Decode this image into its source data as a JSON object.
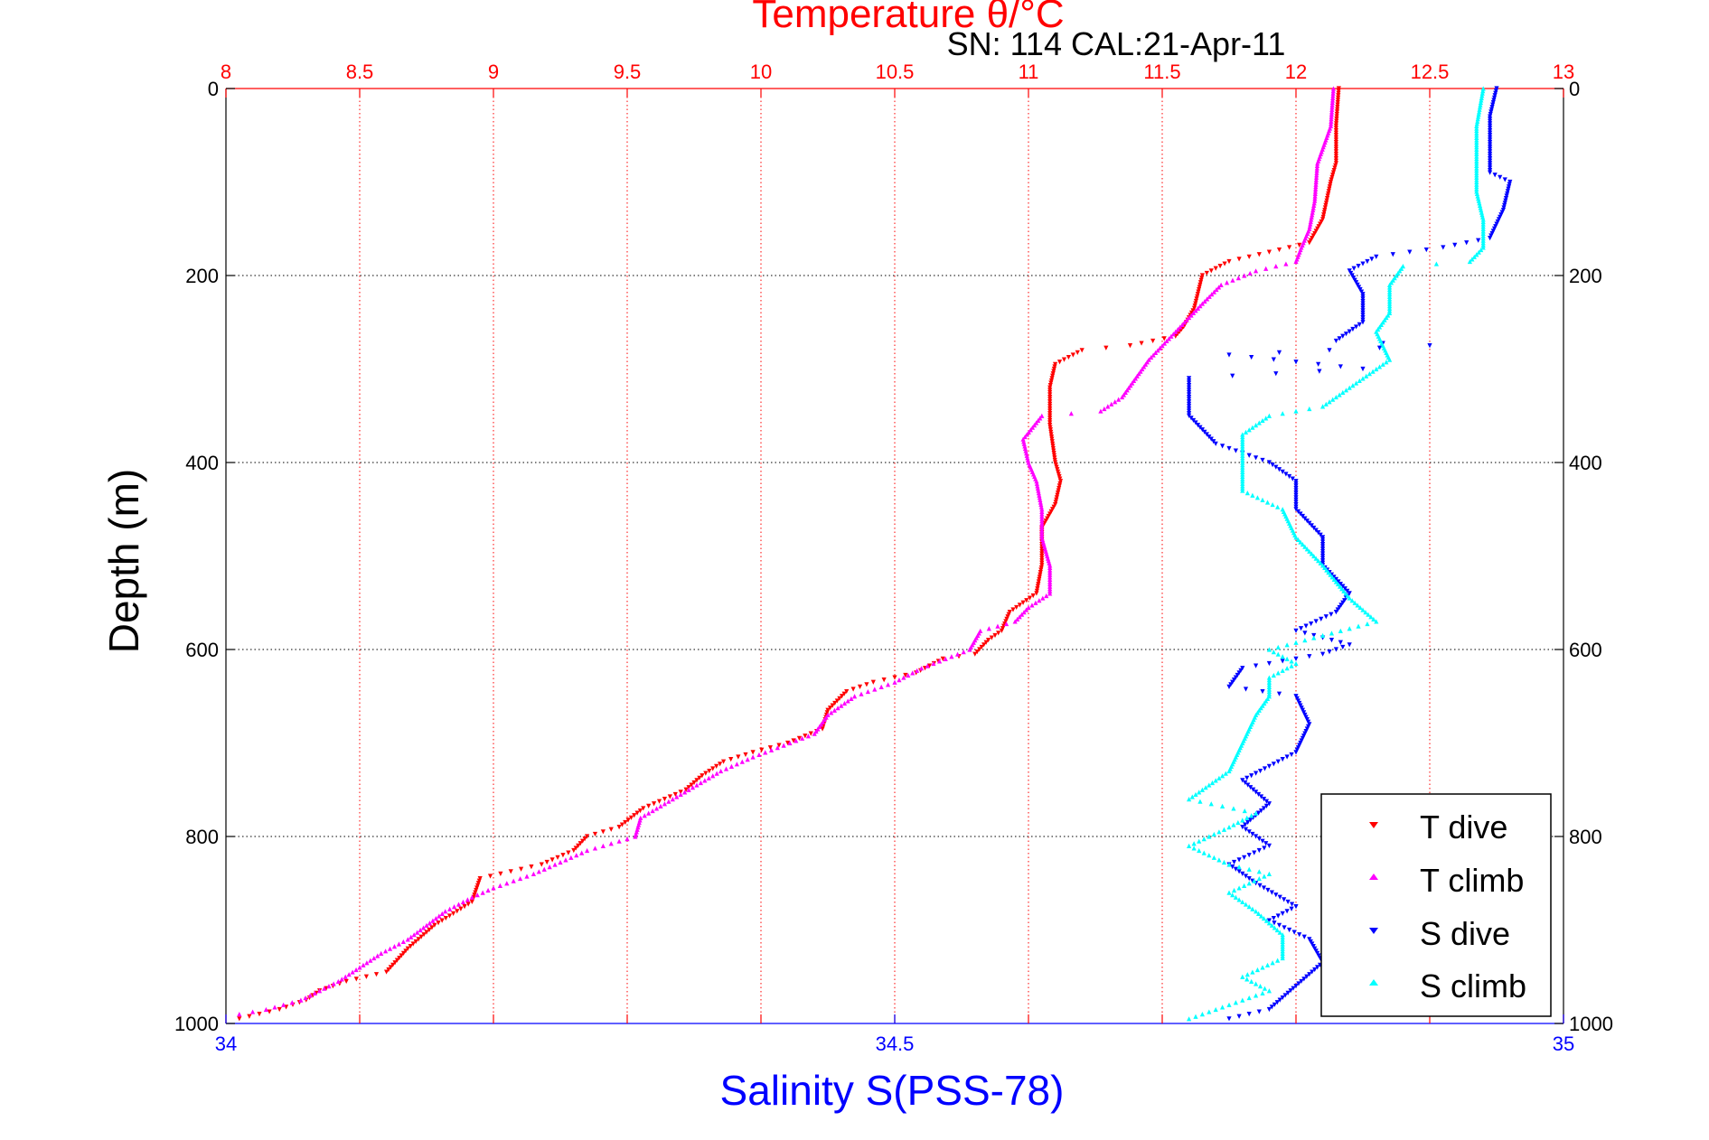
{
  "chart_data": {
    "type": "scatter",
    "title": "Temperature θ/°C",
    "subtitle": "SN: 114  CAL:21-Apr-11",
    "xlabel": "Salinity S(PSS-78)",
    "ylabel": "Depth (m)",
    "x_top": {
      "label": "Temperature θ/°C",
      "range": [
        8,
        13
      ],
      "ticks": [
        "8",
        "8.5",
        "9",
        "9.5",
        "10",
        "10.5",
        "11",
        "11.5",
        "12",
        "12.5",
        "13"
      ],
      "color": "#ff0000"
    },
    "x_bottom": {
      "label": "Salinity S(PSS-78)",
      "range": [
        34,
        35
      ],
      "ticks": [
        "34",
        "34.5",
        "35"
      ],
      "color": "#0000ff"
    },
    "y": {
      "label": "Depth (m)",
      "range": [
        0,
        1000
      ],
      "reversed": true,
      "ticks": [
        "0",
        "200",
        "400",
        "600",
        "800",
        "1000"
      ]
    },
    "grid": true,
    "legend_position": "bottom-right",
    "series": [
      {
        "name": "T dive",
        "axis": "temperature",
        "color": "#ff0000",
        "marker": "triangle-down",
        "points": [
          [
            12.16,
            0
          ],
          [
            12.15,
            40
          ],
          [
            12.15,
            80
          ],
          [
            12.13,
            100
          ],
          [
            12.1,
            140
          ],
          [
            12.05,
            165
          ],
          [
            11.9,
            175
          ],
          [
            11.75,
            185
          ],
          [
            11.65,
            200
          ],
          [
            11.62,
            235
          ],
          [
            11.58,
            255
          ],
          [
            11.55,
            265
          ],
          [
            11.38,
            275
          ],
          [
            11.2,
            280
          ],
          [
            11.1,
            295
          ],
          [
            11.08,
            320
          ],
          [
            11.08,
            360
          ],
          [
            11.1,
            400
          ],
          [
            11.12,
            420
          ],
          [
            11.1,
            445
          ],
          [
            11.05,
            470
          ],
          [
            11.05,
            510
          ],
          [
            11.03,
            540
          ],
          [
            10.93,
            560
          ],
          [
            10.9,
            580
          ],
          [
            10.85,
            590
          ],
          [
            10.8,
            605
          ],
          [
            10.68,
            610
          ],
          [
            10.58,
            625
          ],
          [
            10.42,
            635
          ],
          [
            10.32,
            645
          ],
          [
            10.25,
            665
          ],
          [
            10.23,
            685
          ],
          [
            10.1,
            700
          ],
          [
            9.97,
            710
          ],
          [
            9.86,
            720
          ],
          [
            9.78,
            735
          ],
          [
            9.72,
            750
          ],
          [
            9.56,
            770
          ],
          [
            9.47,
            790
          ],
          [
            9.35,
            800
          ],
          [
            9.3,
            815
          ],
          [
            9.18,
            830
          ],
          [
            8.95,
            845
          ],
          [
            8.92,
            870
          ],
          [
            8.78,
            895
          ],
          [
            8.68,
            920
          ],
          [
            8.6,
            945
          ],
          [
            8.45,
            955
          ],
          [
            8.35,
            965
          ],
          [
            8.3,
            975
          ],
          [
            8.2,
            985
          ],
          [
            8.05,
            995
          ]
        ]
      },
      {
        "name": "T climb",
        "axis": "temperature",
        "color": "#ff00ff",
        "marker": "triangle-up",
        "points": [
          [
            12.14,
            0
          ],
          [
            12.13,
            40
          ],
          [
            12.08,
            80
          ],
          [
            12.07,
            120
          ],
          [
            12.05,
            150
          ],
          [
            12.02,
            170
          ],
          [
            12.0,
            185
          ],
          [
            11.85,
            195
          ],
          [
            11.72,
            210
          ],
          [
            11.65,
            230
          ],
          [
            11.55,
            260
          ],
          [
            11.45,
            290
          ],
          [
            11.4,
            310
          ],
          [
            11.35,
            330
          ],
          [
            11.27,
            345
          ],
          [
            11.05,
            350
          ],
          [
            10.98,
            375
          ],
          [
            11.0,
            400
          ],
          [
            11.03,
            420
          ],
          [
            11.05,
            450
          ],
          [
            11.05,
            480
          ],
          [
            11.08,
            510
          ],
          [
            11.08,
            540
          ],
          [
            11.0,
            555
          ],
          [
            10.95,
            570
          ],
          [
            10.82,
            580
          ],
          [
            10.78,
            600
          ],
          [
            10.6,
            620
          ],
          [
            10.5,
            635
          ],
          [
            10.35,
            650
          ],
          [
            10.25,
            670
          ],
          [
            10.2,
            690
          ],
          [
            9.97,
            715
          ],
          [
            9.85,
            730
          ],
          [
            9.7,
            755
          ],
          [
            9.55,
            780
          ],
          [
            9.53,
            800
          ],
          [
            9.35,
            815
          ],
          [
            9.15,
            840
          ],
          [
            9.0,
            855
          ],
          [
            8.92,
            865
          ],
          [
            8.82,
            880
          ],
          [
            8.75,
            895
          ],
          [
            8.68,
            910
          ],
          [
            8.58,
            925
          ],
          [
            8.5,
            940
          ],
          [
            8.42,
            955
          ],
          [
            8.35,
            965
          ],
          [
            8.28,
            975
          ],
          [
            8.15,
            985
          ],
          [
            8.05,
            990
          ]
        ]
      },
      {
        "name": "S dive",
        "axis": "salinity",
        "color": "#0000ff",
        "marker": "triangle-down",
        "points": [
          [
            34.95,
            0
          ],
          [
            34.945,
            30
          ],
          [
            34.945,
            60
          ],
          [
            34.945,
            90
          ],
          [
            34.96,
            100
          ],
          [
            34.955,
            130
          ],
          [
            34.945,
            160
          ],
          [
            34.91,
            170
          ],
          [
            34.86,
            180
          ],
          [
            34.84,
            195
          ],
          [
            34.85,
            220
          ],
          [
            34.85,
            250
          ],
          [
            34.83,
            270
          ],
          [
            34.9,
            275
          ],
          [
            34.75,
            285
          ],
          [
            34.85,
            300
          ],
          [
            34.72,
            310
          ],
          [
            34.72,
            350
          ],
          [
            34.74,
            380
          ],
          [
            34.78,
            400
          ],
          [
            34.8,
            420
          ],
          [
            34.8,
            450
          ],
          [
            34.82,
            480
          ],
          [
            34.82,
            510
          ],
          [
            34.84,
            540
          ],
          [
            34.83,
            560
          ],
          [
            34.8,
            580
          ],
          [
            34.84,
            595
          ],
          [
            34.82,
            605
          ],
          [
            34.76,
            620
          ],
          [
            34.75,
            640
          ],
          [
            34.8,
            650
          ],
          [
            34.81,
            680
          ],
          [
            34.8,
            710
          ],
          [
            34.76,
            740
          ],
          [
            34.78,
            765
          ],
          [
            34.76,
            790
          ],
          [
            34.78,
            810
          ],
          [
            34.75,
            830
          ],
          [
            34.77,
            850
          ],
          [
            34.8,
            875
          ],
          [
            34.78,
            890
          ],
          [
            34.81,
            910
          ],
          [
            34.82,
            935
          ],
          [
            34.8,
            960
          ],
          [
            34.78,
            985
          ],
          [
            34.75,
            995
          ]
        ]
      },
      {
        "name": "S climb",
        "axis": "salinity",
        "color": "#00ffff",
        "marker": "triangle-up",
        "points": [
          [
            34.94,
            0
          ],
          [
            34.935,
            40
          ],
          [
            34.935,
            80
          ],
          [
            34.935,
            110
          ],
          [
            34.94,
            140
          ],
          [
            34.94,
            170
          ],
          [
            34.93,
            185
          ],
          [
            34.88,
            190
          ],
          [
            34.87,
            210
          ],
          [
            34.87,
            240
          ],
          [
            34.86,
            260
          ],
          [
            34.87,
            290
          ],
          [
            34.84,
            320
          ],
          [
            34.82,
            340
          ],
          [
            34.78,
            350
          ],
          [
            34.76,
            370
          ],
          [
            34.76,
            400
          ],
          [
            34.76,
            430
          ],
          [
            34.79,
            450
          ],
          [
            34.8,
            480
          ],
          [
            34.82,
            510
          ],
          [
            34.84,
            545
          ],
          [
            34.86,
            570
          ],
          [
            34.82,
            585
          ],
          [
            34.78,
            600
          ],
          [
            34.8,
            615
          ],
          [
            34.78,
            630
          ],
          [
            34.78,
            650
          ],
          [
            34.77,
            670
          ],
          [
            34.76,
            700
          ],
          [
            34.75,
            730
          ],
          [
            34.72,
            760
          ],
          [
            34.77,
            775
          ],
          [
            34.75,
            790
          ],
          [
            34.72,
            810
          ],
          [
            34.75,
            830
          ],
          [
            34.78,
            840
          ],
          [
            34.75,
            860
          ],
          [
            34.77,
            880
          ],
          [
            34.79,
            905
          ],
          [
            34.79,
            930
          ],
          [
            34.76,
            950
          ],
          [
            34.78,
            965
          ],
          [
            34.74,
            985
          ],
          [
            34.72,
            995
          ]
        ]
      }
    ]
  }
}
